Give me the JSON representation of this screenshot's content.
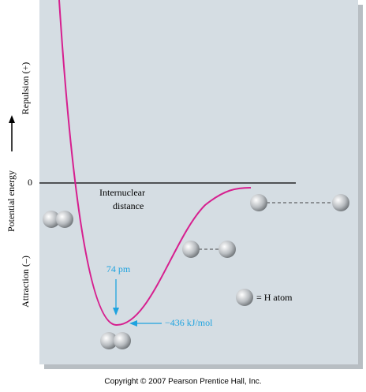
{
  "axis": {
    "positive_label": "Repulsion (+)",
    "y_label": "Potential energy",
    "negative_label": "Attraction (–)",
    "zero_label": "0",
    "x_label_line1": "Internuclear",
    "x_label_line2": "distance"
  },
  "annotations": {
    "bond_length": "74 pm",
    "bond_energy": "−436 kJ/mol",
    "legend": "= H atom"
  },
  "footer": {
    "copyright": "Copyright © 2007 Pearson Prentice Hall, Inc."
  }
}
